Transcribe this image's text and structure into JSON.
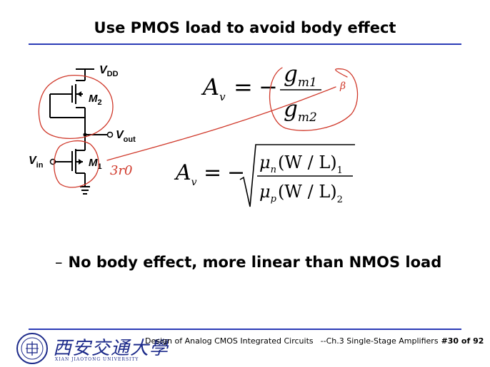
{
  "slide": {
    "title": "Use PMOS load to avoid body effect",
    "bullet": "No body effect, more linear than NMOS load",
    "bullet_marker": "–"
  },
  "circuit": {
    "vdd_label": "V",
    "vdd_sub": "DD",
    "m2_label": "M",
    "m2_sub": "2",
    "vout_label": "V",
    "vout_sub": "out",
    "vin_label": "V",
    "vin_sub": "in",
    "m1_label": "M",
    "m1_sub": "1"
  },
  "equations": {
    "eq1": {
      "lhs": "A",
      "lhs_sub": "v",
      "equals": "=",
      "minus": "−",
      "num": "g",
      "num_sub": "m1",
      "den": "g",
      "den_sub": "m2"
    },
    "eq2": {
      "lhs": "A",
      "lhs_sub": "v",
      "equals": "=",
      "minus": "−",
      "num_mu": "μ",
      "num_mu_sub": "n",
      "num_ratio": "(W / L)",
      "num_ratio_sub": "1",
      "den_mu": "μ",
      "den_mu_sub": "p",
      "den_ratio": "(W / L)",
      "den_ratio_sub": "2"
    }
  },
  "annotations": {
    "handwritten": "3r0",
    "handwritten_small": "β"
  },
  "footer": {
    "university_cn": "西安交通大學",
    "university_en": "XIAN JIAOTONG UNIVERSITY",
    "course": "Design of Analog CMOS Integrated Circuits",
    "chapter": "--Ch.3 Single-Stage Amplifiers",
    "page": "#30 of 92"
  },
  "colors": {
    "rule": "#2b3bb6",
    "ink_red": "#d0392b",
    "logo_blue": "#1c2a8a"
  }
}
